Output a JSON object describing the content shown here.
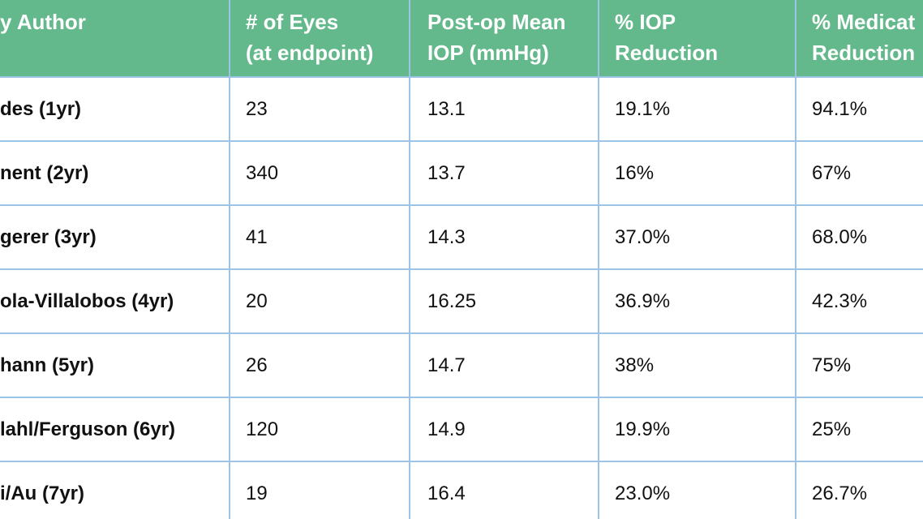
{
  "table": {
    "header": [
      [
        "y Author"
      ],
      [
        "# of Eyes",
        "(at endpoint)"
      ],
      [
        "Post-op Mean",
        "IOP (mmHg)"
      ],
      [
        "% IOP",
        "Reduction"
      ],
      [
        "% Medicat",
        "Reduction"
      ]
    ],
    "rows": [
      [
        "des (1yr)",
        "23",
        "13.1",
        "19.1%",
        "94.1%"
      ],
      [
        "nent (2yr)",
        "340",
        "13.7",
        "16%",
        "67%"
      ],
      [
        "gerer (3yr)",
        "41",
        "14.3",
        "37.0%",
        "68.0%"
      ],
      [
        "ola-Villalobos (4yr)",
        "20",
        "16.25",
        "36.9%",
        "42.3%"
      ],
      [
        "hann (5yr)",
        "26",
        "14.7",
        "38%",
        "75%"
      ],
      [
        "lahl/Ferguson (6yr)",
        "120",
        "14.9",
        "19.9%",
        "25%"
      ],
      [
        "i/Au (7yr)",
        "19",
        "16.4",
        "23.0%",
        "26.7%"
      ]
    ]
  }
}
